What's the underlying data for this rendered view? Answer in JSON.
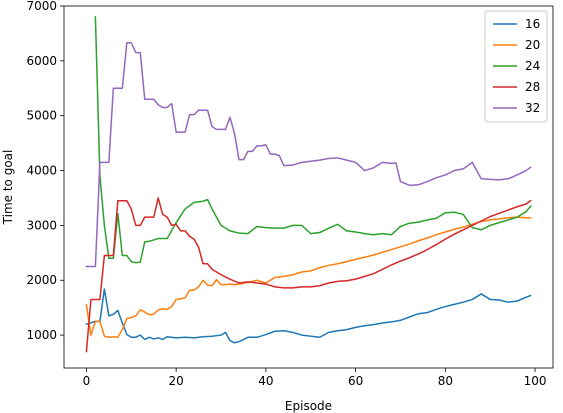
{
  "chart_data": {
    "type": "line",
    "title": "",
    "xlabel": "Episode",
    "ylabel": "Time to goal",
    "xlim": [
      -5,
      104
    ],
    "ylim": [
      400,
      7000
    ],
    "xticks": [
      0,
      20,
      40,
      60,
      80,
      100
    ],
    "yticks": [
      1000,
      2000,
      3000,
      4000,
      5000,
      6000,
      7000
    ],
    "legend_position": "top-right",
    "grid": false,
    "series": [
      {
        "name": "16",
        "color": "#1f77b4",
        "x": [
          0,
          2,
          3,
          4,
          5,
          6,
          7,
          8,
          9,
          10,
          11,
          12,
          13,
          14,
          15,
          16,
          17,
          18,
          20,
          22,
          24,
          26,
          28,
          30,
          31,
          32,
          33,
          34,
          36,
          38,
          40,
          42,
          44,
          46,
          48,
          50,
          52,
          54,
          56,
          58,
          60,
          62,
          64,
          66,
          68,
          70,
          72,
          74,
          76,
          78,
          80,
          82,
          84,
          86,
          88,
          90,
          92,
          94,
          96,
          98,
          99
        ],
        "values": [
          1200,
          1250,
          1250,
          1840,
          1350,
          1380,
          1450,
          1220,
          1010,
          960,
          960,
          1000,
          920,
          960,
          930,
          950,
          920,
          970,
          950,
          960,
          950,
          970,
          980,
          1000,
          1050,
          900,
          860,
          880,
          960,
          960,
          1010,
          1070,
          1080,
          1050,
          1000,
          980,
          960,
          1050,
          1080,
          1100,
          1140,
          1170,
          1190,
          1220,
          1240,
          1270,
          1330,
          1390,
          1410,
          1470,
          1520,
          1560,
          1600,
          1650,
          1750,
          1650,
          1640,
          1600,
          1620,
          1690,
          1720
        ]
      },
      {
        "name": "20",
        "color": "#ff7f0e",
        "x": [
          0,
          1,
          2,
          3,
          4,
          5,
          6,
          7,
          8,
          9,
          10,
          11,
          12,
          13,
          14,
          15,
          16,
          17,
          18,
          19,
          20,
          21,
          22,
          23,
          24,
          25,
          26,
          27,
          28,
          29,
          30,
          31,
          32,
          33,
          34,
          36,
          38,
          40,
          42,
          44,
          46,
          48,
          50,
          52,
          54,
          56,
          58,
          60,
          62,
          64,
          66,
          68,
          70,
          72,
          74,
          76,
          78,
          80,
          82,
          84,
          86,
          88,
          90,
          92,
          94,
          96,
          98,
          99
        ],
        "values": [
          1550,
          1000,
          1250,
          1250,
          980,
          960,
          970,
          960,
          1100,
          1300,
          1320,
          1350,
          1460,
          1420,
          1370,
          1380,
          1460,
          1480,
          1470,
          1520,
          1650,
          1660,
          1680,
          1820,
          1820,
          1880,
          2000,
          1910,
          1900,
          2010,
          1920,
          1920,
          1930,
          1920,
          1930,
          1960,
          2000,
          1950,
          2050,
          2070,
          2100,
          2150,
          2170,
          2230,
          2270,
          2300,
          2340,
          2380,
          2420,
          2460,
          2510,
          2560,
          2610,
          2660,
          2720,
          2770,
          2830,
          2880,
          2930,
          2970,
          3020,
          3070,
          3100,
          3120,
          3140,
          3150,
          3140,
          3140
        ]
      },
      {
        "name": "24",
        "color": "#2ca02c",
        "x": [
          2,
          3,
          4,
          5,
          6,
          7,
          8,
          9,
          10,
          11,
          12,
          13,
          14,
          16,
          18,
          20,
          22,
          24,
          26,
          27,
          28,
          30,
          32,
          34,
          36,
          38,
          40,
          42,
          44,
          46,
          48,
          50,
          52,
          54,
          56,
          58,
          60,
          62,
          64,
          66,
          68,
          70,
          72,
          74,
          76,
          78,
          80,
          82,
          84,
          86,
          88,
          90,
          92,
          94,
          96,
          98,
          99
        ],
        "values": [
          6800,
          3900,
          3000,
          2400,
          2400,
          3220,
          2450,
          2450,
          2340,
          2320,
          2330,
          2700,
          2710,
          2760,
          2760,
          3050,
          3300,
          3420,
          3440,
          3470,
          3300,
          3000,
          2900,
          2860,
          2850,
          2980,
          2960,
          2950,
          2950,
          3000,
          3000,
          2850,
          2870,
          2950,
          3020,
          2900,
          2880,
          2850,
          2830,
          2850,
          2830,
          2980,
          3040,
          3060,
          3100,
          3130,
          3230,
          3240,
          3200,
          2960,
          2920,
          3000,
          3050,
          3100,
          3150,
          3250,
          3350
        ]
      },
      {
        "name": "28",
        "color": "#d62728",
        "x": [
          0,
          1,
          2,
          3,
          4,
          5,
          6,
          7,
          8,
          9,
          10,
          11,
          12,
          13,
          14,
          15,
          16,
          17,
          18,
          19,
          20,
          21,
          22,
          23,
          24,
          25,
          26,
          27,
          28,
          29,
          30,
          32,
          34,
          36,
          38,
          40,
          42,
          44,
          46,
          48,
          50,
          52,
          54,
          56,
          58,
          60,
          62,
          64,
          66,
          68,
          70,
          72,
          74,
          76,
          78,
          80,
          82,
          84,
          86,
          88,
          90,
          92,
          94,
          96,
          98,
          99
        ],
        "values": [
          700,
          1650,
          1650,
          1650,
          2450,
          2450,
          2450,
          3450,
          3450,
          3450,
          3300,
          3000,
          3000,
          3150,
          3150,
          3150,
          3500,
          3200,
          3150,
          3000,
          3020,
          2900,
          2900,
          2800,
          2750,
          2600,
          2300,
          2300,
          2200,
          2150,
          2100,
          2020,
          1950,
          1970,
          1950,
          1930,
          1880,
          1860,
          1860,
          1880,
          1880,
          1900,
          1950,
          1980,
          1990,
          2020,
          2070,
          2120,
          2200,
          2280,
          2350,
          2410,
          2480,
          2560,
          2650,
          2750,
          2840,
          2920,
          3000,
          3080,
          3160,
          3220,
          3280,
          3340,
          3390,
          3450
        ]
      },
      {
        "name": "32",
        "color": "#9467bd",
        "x": [
          0,
          1,
          2,
          3,
          4,
          5,
          6,
          7,
          8,
          9,
          10,
          11,
          12,
          13,
          14,
          15,
          16,
          17,
          18,
          19,
          20,
          21,
          22,
          23,
          24,
          25,
          26,
          27,
          28,
          29,
          30,
          31,
          32,
          33,
          34,
          35,
          36,
          37,
          38,
          39,
          40,
          41,
          42,
          43,
          44,
          46,
          48,
          50,
          52,
          54,
          56,
          58,
          60,
          62,
          64,
          66,
          68,
          69,
          70,
          72,
          74,
          76,
          78,
          80,
          82,
          84,
          86,
          88,
          90,
          92,
          94,
          96,
          98,
          99
        ],
        "values": [
          2250,
          2250,
          2250,
          4150,
          4150,
          4150,
          5500,
          5500,
          5500,
          6330,
          6330,
          6150,
          6150,
          5300,
          5300,
          5300,
          5200,
          5150,
          5150,
          5220,
          4700,
          4700,
          4700,
          5020,
          5020,
          5100,
          5100,
          5100,
          4800,
          4750,
          4750,
          4750,
          4970,
          4680,
          4200,
          4200,
          4350,
          4350,
          4450,
          4450,
          4470,
          4300,
          4300,
          4270,
          4090,
          4100,
          4150,
          4170,
          4190,
          4220,
          4230,
          4190,
          4150,
          4000,
          4050,
          4150,
          4130,
          4140,
          3800,
          3730,
          3740,
          3800,
          3870,
          3920,
          4000,
          4030,
          4150,
          3850,
          3840,
          3830,
          3850,
          3920,
          4000,
          4060
        ]
      }
    ]
  }
}
